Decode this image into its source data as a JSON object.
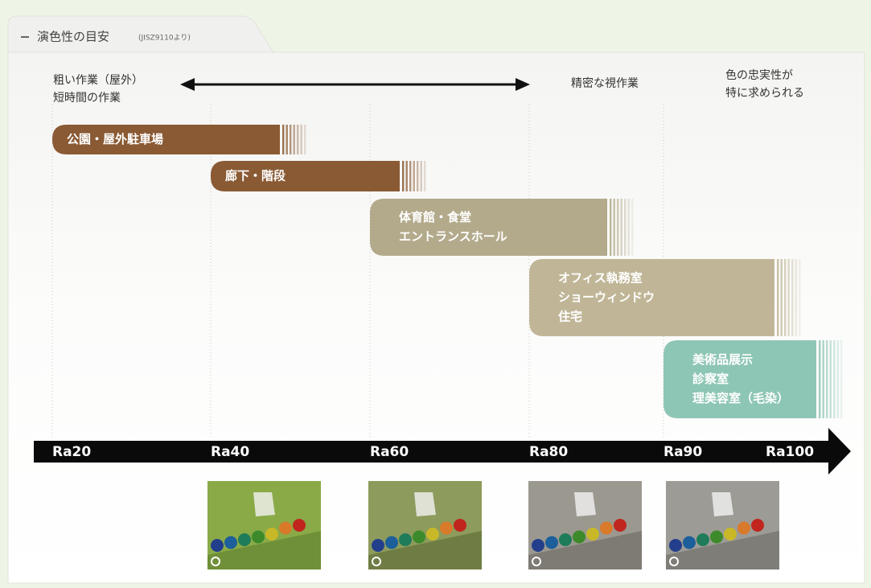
{
  "header": {
    "title": "演色性の目安",
    "note": "(JISZ9110より)"
  },
  "top_labels": [
    {
      "lines": [
        "粗い作業（屋外）",
        "短時間の作業"
      ]
    },
    {
      "lines": [
        "精密な視作業"
      ]
    },
    {
      "lines": [
        "色の忠実性が",
        "特に求められる"
      ]
    }
  ],
  "bars": [
    {
      "lines": [
        "公園・屋外駐車場"
      ]
    },
    {
      "lines": [
        "廊下・階段"
      ]
    },
    {
      "lines": [
        "体育館・食堂",
        "エントランスホール"
      ]
    },
    {
      "lines": [
        "オフィス執務室",
        "ショーウィンドウ",
        "住宅"
      ]
    },
    {
      "lines": [
        "美術品展示",
        "診察室",
        "理美容室（毛染）"
      ]
    }
  ],
  "axis": {
    "labels": [
      "Ra20",
      "Ra40",
      "Ra60",
      "Ra80",
      "Ra90",
      "Ra100"
    ]
  }
}
